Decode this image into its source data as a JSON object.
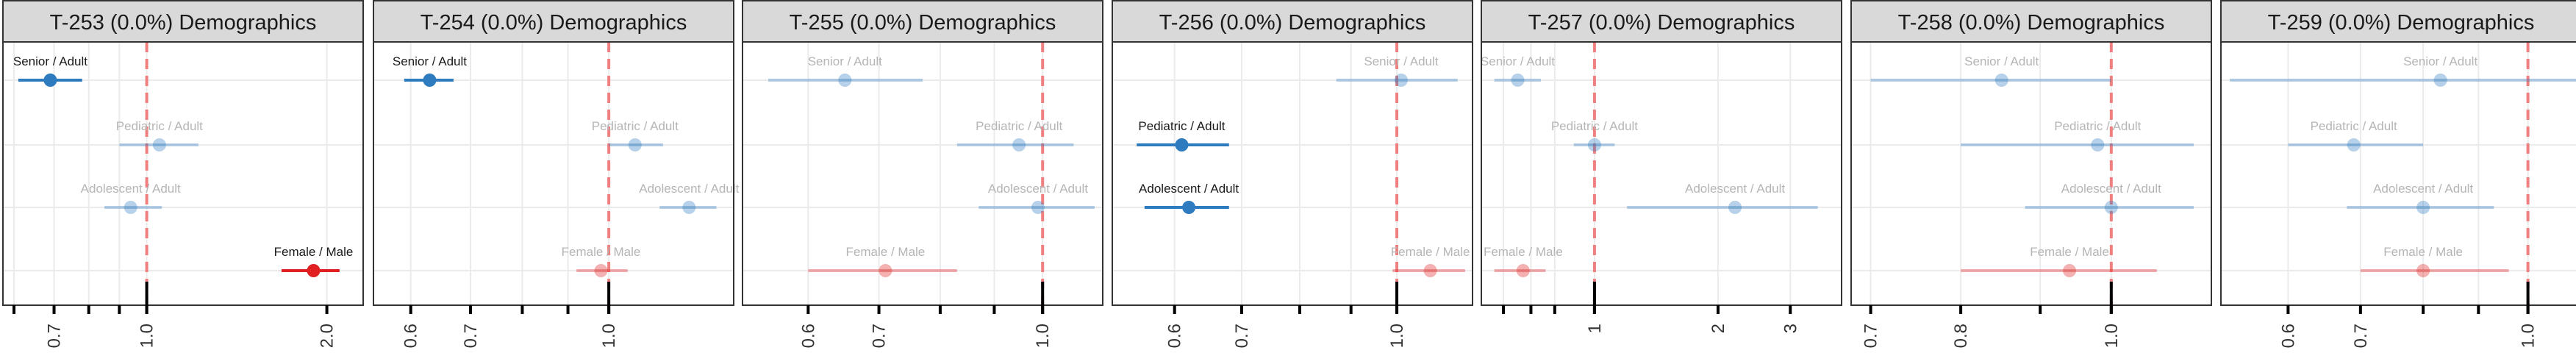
{
  "colors": {
    "age_group": "#2f7bbf",
    "sex_group": "#e02020",
    "reference_line": "#f08080",
    "strip_fill": "#d9d9d9",
    "grid": "#ebebeb",
    "dim_label": "#b5b5b5",
    "strong_label": "#1a1a1a"
  },
  "chart_data": [
    {
      "type": "scatter",
      "title": "T-253 (0.0%) Demographics",
      "scale": "log",
      "xlim": [
        0.575,
        2.3
      ],
      "reference": 1.0,
      "ticks": [
        0.6,
        0.7,
        0.8,
        0.9,
        1.0,
        2.0
      ],
      "tick_labels": [
        {
          "v": 0.7,
          "t": "0.7"
        },
        {
          "v": 1.0,
          "t": "1.0"
        },
        {
          "v": 2.0,
          "t": "2.0"
        }
      ],
      "points": [
        {
          "label": "Senior / Adult",
          "group": "age",
          "est": 0.69,
          "lo": 0.61,
          "hi": 0.78,
          "highlight": true
        },
        {
          "label": "Pediatric / Adult",
          "group": "age",
          "est": 1.05,
          "lo": 0.9,
          "hi": 1.22,
          "highlight": false
        },
        {
          "label": "Adolescent / Adult",
          "group": "age",
          "est": 0.94,
          "lo": 0.85,
          "hi": 1.06,
          "highlight": false
        },
        {
          "label": "Female / Male",
          "group": "sex",
          "est": 1.9,
          "lo": 1.68,
          "hi": 2.1,
          "highlight": true
        }
      ]
    },
    {
      "type": "scatter",
      "title": "T-254 (0.0%) Demographics",
      "scale": "log",
      "xlim": [
        0.545,
        1.38
      ],
      "reference": 1.0,
      "ticks": [
        0.6,
        0.7,
        0.8,
        0.9,
        1.0
      ],
      "tick_labels": [
        {
          "v": 0.6,
          "t": "0.6"
        },
        {
          "v": 0.7,
          "t": "0.7"
        },
        {
          "v": 1.0,
          "t": "1.0"
        }
      ],
      "points": [
        {
          "label": "Senior / Adult",
          "group": "age",
          "est": 0.63,
          "lo": 0.59,
          "hi": 0.67,
          "highlight": true
        },
        {
          "label": "Pediatric / Adult",
          "group": "age",
          "est": 1.07,
          "lo": 1.0,
          "hi": 1.15,
          "highlight": false
        },
        {
          "label": "Adolescent / Adult",
          "group": "age",
          "est": 1.23,
          "lo": 1.14,
          "hi": 1.32,
          "highlight": false
        },
        {
          "label": "Female / Male",
          "group": "sex",
          "est": 0.98,
          "lo": 0.92,
          "hi": 1.05,
          "highlight": false
        }
      ]
    },
    {
      "type": "scatter",
      "title": "T-255 (0.0%) Demographics",
      "scale": "log",
      "xlim": [
        0.52,
        1.14
      ],
      "reference": 1.0,
      "ticks": [
        0.6,
        0.7,
        0.8,
        0.9,
        1.0
      ],
      "tick_labels": [
        {
          "v": 0.6,
          "t": "0.6"
        },
        {
          "v": 0.7,
          "t": "0.7"
        },
        {
          "v": 1.0,
          "t": "1.0"
        }
      ],
      "points": [
        {
          "label": "Senior / Adult",
          "group": "age",
          "est": 0.65,
          "lo": 0.55,
          "hi": 0.77,
          "highlight": false
        },
        {
          "label": "Pediatric / Adult",
          "group": "age",
          "est": 0.95,
          "lo": 0.83,
          "hi": 1.07,
          "highlight": false
        },
        {
          "label": "Adolescent / Adult",
          "group": "age",
          "est": 0.99,
          "lo": 0.87,
          "hi": 1.12,
          "highlight": false
        },
        {
          "label": "Female / Male",
          "group": "sex",
          "est": 0.71,
          "lo": 0.6,
          "hi": 0.83,
          "highlight": false
        }
      ]
    },
    {
      "type": "scatter",
      "title": "T-256 (0.0%) Demographics",
      "scale": "log",
      "xlim": [
        0.52,
        1.19
      ],
      "reference": 1.0,
      "ticks": [
        0.6,
        0.7,
        0.8,
        0.9,
        1.0
      ],
      "tick_labels": [
        {
          "v": 0.6,
          "t": "0.6"
        },
        {
          "v": 0.7,
          "t": "0.7"
        },
        {
          "v": 1.0,
          "t": "1.0"
        }
      ],
      "points": [
        {
          "label": "Senior / Adult",
          "group": "age",
          "est": 1.01,
          "lo": 0.87,
          "hi": 1.15,
          "highlight": false
        },
        {
          "label": "Pediatric / Adult",
          "group": "age",
          "est": 0.61,
          "lo": 0.55,
          "hi": 0.68,
          "highlight": true
        },
        {
          "label": "Adolescent / Adult",
          "group": "age",
          "est": 0.62,
          "lo": 0.56,
          "hi": 0.68,
          "highlight": true
        },
        {
          "label": "Female / Male",
          "group": "sex",
          "est": 1.08,
          "lo": 0.99,
          "hi": 1.17,
          "highlight": false
        }
      ]
    },
    {
      "type": "scatter",
      "title": "T-257 (0.0%) Demographics",
      "scale": "log",
      "xlim": [
        0.53,
        4.0
      ],
      "reference": 1.0,
      "ticks": [
        0.6,
        0.7,
        0.8,
        1.0,
        2.0,
        3.0
      ],
      "tick_labels": [
        {
          "v": 1.0,
          "t": "1"
        },
        {
          "v": 2.0,
          "t": "2"
        },
        {
          "v": 3.0,
          "t": "3"
        }
      ],
      "points": [
        {
          "label": "Senior / Adult",
          "group": "age",
          "est": 0.65,
          "lo": 0.57,
          "hi": 0.74,
          "highlight": false
        },
        {
          "label": "Pediatric / Adult",
          "group": "age",
          "est": 1.0,
          "lo": 0.89,
          "hi": 1.12,
          "highlight": false
        },
        {
          "label": "Adolescent / Adult",
          "group": "age",
          "est": 2.2,
          "lo": 1.2,
          "hi": 3.5,
          "highlight": false
        },
        {
          "label": "Female / Male",
          "group": "sex",
          "est": 0.67,
          "lo": 0.57,
          "hi": 0.76,
          "highlight": false
        }
      ]
    },
    {
      "type": "scatter",
      "title": "T-258 (0.0%) Demographics",
      "scale": "log",
      "xlim": [
        0.68,
        1.16
      ],
      "reference": 1.0,
      "ticks": [
        0.7,
        0.8,
        0.9,
        1.0
      ],
      "tick_labels": [
        {
          "v": 0.7,
          "t": "0.7"
        },
        {
          "v": 0.8,
          "t": "0.8"
        },
        {
          "v": 1.0,
          "t": "1.0"
        }
      ],
      "points": [
        {
          "label": "Senior / Adult",
          "group": "age",
          "est": 0.85,
          "lo": 0.7,
          "hi": 1.0,
          "highlight": false
        },
        {
          "label": "Pediatric / Adult",
          "group": "age",
          "est": 0.98,
          "lo": 0.8,
          "hi": 1.13,
          "highlight": false
        },
        {
          "label": "Adolescent / Adult",
          "group": "age",
          "est": 1.0,
          "lo": 0.88,
          "hi": 1.13,
          "highlight": false
        },
        {
          "label": "Female / Male",
          "group": "sex",
          "est": 0.94,
          "lo": 0.8,
          "hi": 1.07,
          "highlight": false
        }
      ]
    },
    {
      "type": "scatter",
      "title": "T-259 (0.0%) Demographics",
      "scale": "log",
      "xlim": [
        0.52,
        1.12
      ],
      "reference": 1.0,
      "ticks": [
        0.6,
        0.7,
        0.8,
        0.9,
        1.0
      ],
      "tick_labels": [
        {
          "v": 0.6,
          "t": "0.6"
        },
        {
          "v": 0.7,
          "t": "0.7"
        },
        {
          "v": 1.0,
          "t": "1.0"
        }
      ],
      "points": [
        {
          "label": "Senior / Adult",
          "group": "age",
          "est": 0.83,
          "lo": 0.53,
          "hi": 1.11,
          "highlight": false
        },
        {
          "label": "Pediatric / Adult",
          "group": "age",
          "est": 0.69,
          "lo": 0.6,
          "hi": 0.8,
          "highlight": false
        },
        {
          "label": "Adolescent / Adult",
          "group": "age",
          "est": 0.8,
          "lo": 0.68,
          "hi": 0.93,
          "highlight": false
        },
        {
          "label": "Female / Male",
          "group": "sex",
          "est": 0.8,
          "lo": 0.7,
          "hi": 0.96,
          "highlight": false
        }
      ]
    }
  ]
}
